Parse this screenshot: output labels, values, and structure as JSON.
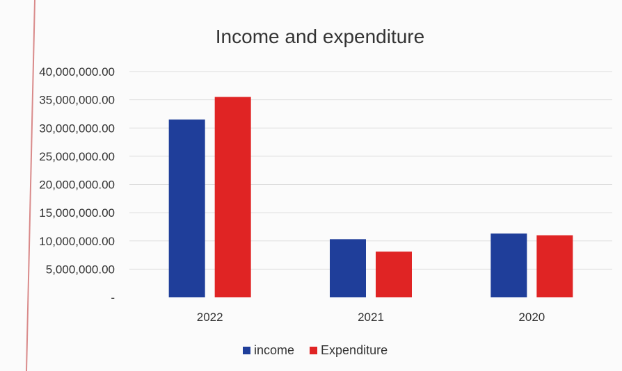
{
  "chart_data": {
    "type": "bar",
    "title": "Income and expenditure",
    "xlabel": "",
    "ylabel": "",
    "categories": [
      "2022",
      "2021",
      "2020"
    ],
    "series": [
      {
        "name": "income",
        "values": [
          31500000,
          10300000,
          11300000
        ],
        "color": "#1f3e9a"
      },
      {
        "name": "Expenditure",
        "values": [
          35500000,
          8100000,
          11000000
        ],
        "color": "#e02424"
      }
    ],
    "ylim": [
      0,
      40000000
    ],
    "y_tick_labels": [
      "-",
      "5,000,000.00",
      "10,000,000.00",
      "15,000,000.00",
      "20,000,000.00",
      "25,000,000.00",
      "30,000,000.00",
      "35,000,000.00",
      "40,000,000.00"
    ],
    "grid": true,
    "legend_position": "bottom"
  }
}
